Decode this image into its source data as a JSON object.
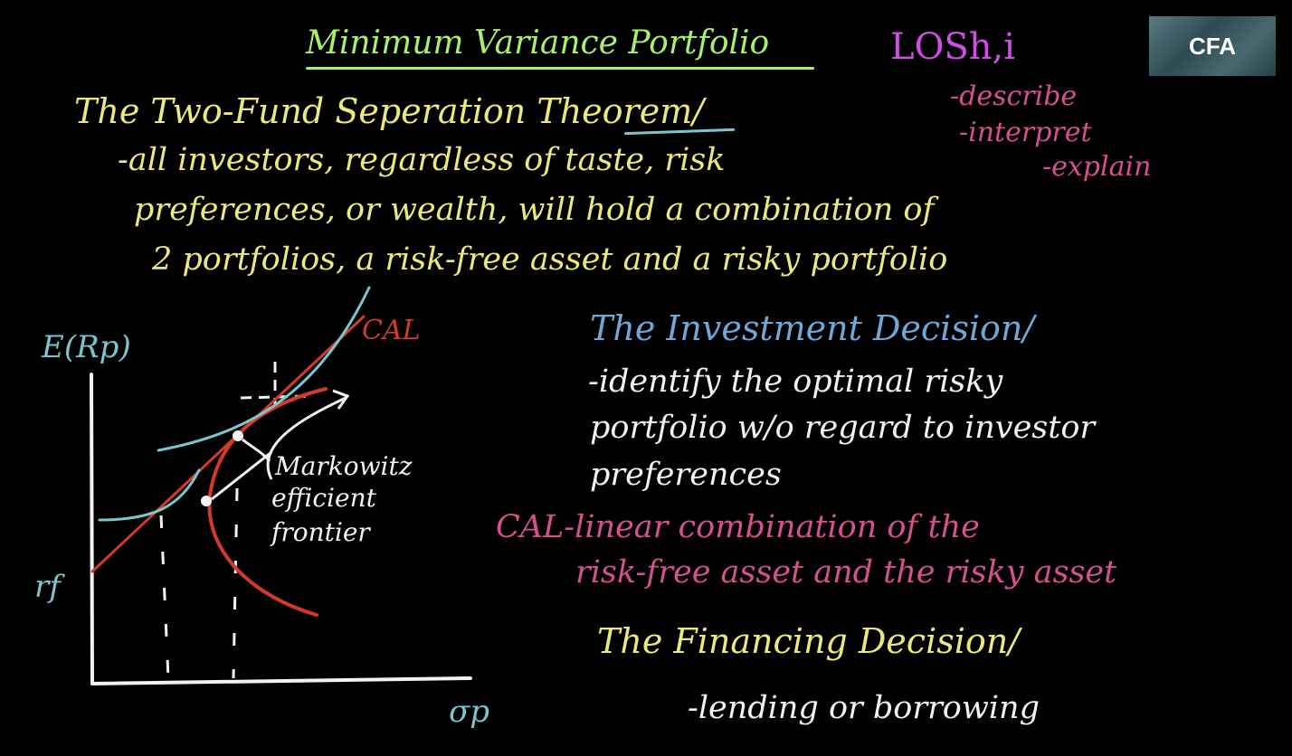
{
  "title": "Minimum Variance Portfolio",
  "los": {
    "heading": "LOSh,i",
    "items": [
      "-describe",
      "-interpret",
      "-explain"
    ]
  },
  "theorem": {
    "heading": "The Two-Fund Seperation Theorem/",
    "lines": [
      "-all investors, regardless of taste, risk",
      "preferences, or wealth, will hold a combination of",
      "2 portfolios, a risk-free asset and a risky portfolio"
    ]
  },
  "investment": {
    "heading": "The Investment Decision/",
    "lines": [
      "-identify the optimal risky",
      "portfolio w/o regard to investor",
      "preferences"
    ]
  },
  "cal_definition": [
    "CAL-linear combination of the",
    "risk-free asset and the risky asset"
  ],
  "financing": {
    "heading": "The Financing Decision/",
    "lines": [
      "-lending or borrowing"
    ]
  },
  "graph": {
    "y_axis_label": "E(Rp)",
    "x_axis_label": "σp",
    "intercept_label": "rf",
    "cal_label": "CAL",
    "frontier_label": [
      "Markowitz",
      "efficient",
      "frontier"
    ]
  },
  "logo": "CFA",
  "colors": {
    "background": "#000000",
    "title": "#a8f06a",
    "theorem": "#ece97c",
    "los": "#d14ee6",
    "los_items": "#d5508d",
    "investment_heading": "#6ea8d8",
    "body_white": "#f2f2f2",
    "cal_line": "#d33a2a",
    "indifference_curve": "#7cc5cf"
  }
}
